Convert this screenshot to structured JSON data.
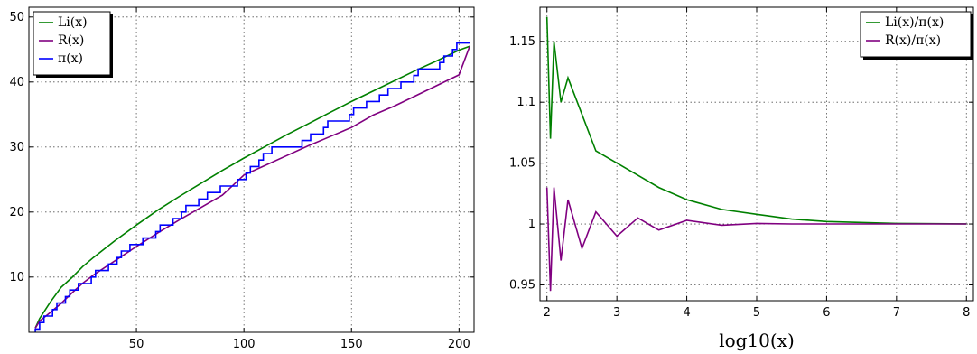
{
  "chart_data": [
    {
      "type": "line",
      "title": "",
      "xlabel": "",
      "ylabel": "",
      "xlim": [
        0,
        207
      ],
      "ylim": [
        1.5,
        51.5
      ],
      "xticks": [
        50,
        100,
        150,
        200
      ],
      "yticks": [
        10,
        20,
        30,
        40,
        50
      ],
      "grid": true,
      "legend_position": "top-left",
      "series": [
        {
          "name": "Li(x)",
          "color": "#008000",
          "x": [
            3,
            5,
            10,
            15,
            20,
            25,
            30,
            40,
            50,
            60,
            70,
            80,
            90,
            100,
            110,
            120,
            130,
            140,
            150,
            160,
            170,
            180,
            190,
            200,
            205
          ],
          "y": [
            2.16,
            3.63,
            6.17,
            8.42,
            9.91,
            11.6,
            13.0,
            15.6,
            18.0,
            20.3,
            22.4,
            24.4,
            26.4,
            28.3,
            30.1,
            31.9,
            33.6,
            35.3,
            37.0,
            38.6,
            40.2,
            41.8,
            43.3,
            44.9,
            45.5
          ]
        },
        {
          "name": "R(x)",
          "color": "#800080",
          "x": [
            3,
            5,
            10,
            15,
            20,
            25,
            30,
            40,
            50,
            60,
            70,
            80,
            90,
            100,
            110,
            120,
            130,
            140,
            150,
            160,
            170,
            180,
            190,
            200,
            205
          ],
          "y": [
            2.14,
            3.24,
            4.56,
            5.94,
            7.54,
            9.04,
            10.3,
            12.5,
            14.7,
            16.8,
            18.8,
            20.7,
            22.6,
            25.7,
            27.2,
            28.7,
            30.2,
            31.6,
            33.0,
            34.9,
            36.3,
            37.9,
            39.5,
            41.1,
            45.5
          ]
        },
        {
          "name": "π(x)",
          "color": "#0000ff",
          "x": [
            2,
            3,
            5,
            7,
            11,
            13,
            17,
            19,
            23,
            29,
            31,
            37,
            41,
            43,
            47,
            53,
            59,
            61,
            67,
            71,
            73,
            79,
            83,
            89,
            97,
            101,
            103,
            107,
            109,
            113,
            127,
            131,
            137,
            139,
            149,
            151,
            157,
            163,
            167,
            173,
            179,
            181,
            191,
            193,
            197,
            199,
            205
          ],
          "y": [
            1,
            2,
            3,
            4,
            5,
            6,
            7,
            8,
            9,
            10,
            11,
            12,
            13,
            14,
            15,
            16,
            17,
            18,
            19,
            20,
            21,
            22,
            23,
            24,
            25,
            26,
            27,
            28,
            29,
            30,
            31,
            32,
            33,
            34,
            35,
            36,
            37,
            38,
            39,
            40,
            41,
            42,
            43,
            44,
            45,
            46,
            46
          ]
        }
      ]
    },
    {
      "type": "line",
      "title": "",
      "xlabel": "log10(x)",
      "ylabel": "",
      "xlim": [
        1.9,
        8.1
      ],
      "ylim": [
        0.937,
        1.178
      ],
      "xticks": [
        2,
        3,
        4,
        5,
        6,
        7,
        8
      ],
      "yticks": [
        0.95,
        1,
        1.05,
        1.1,
        1.15
      ],
      "ytick_labels": [
        "0.95",
        "1",
        "1.05",
        "1.1",
        "1.15"
      ],
      "grid": true,
      "legend_position": "top-right",
      "series": [
        {
          "name": "Li(x)/π(x)",
          "color": "#008000",
          "x": [
            2.0,
            2.05,
            2.1,
            2.2,
            2.3,
            2.5,
            2.7,
            3.0,
            3.3,
            3.6,
            4.0,
            4.5,
            5.0,
            5.5,
            6.0,
            7.0,
            8.0
          ],
          "y": [
            1.17,
            1.07,
            1.15,
            1.1,
            1.12,
            1.09,
            1.06,
            1.05,
            1.04,
            1.03,
            1.02,
            1.012,
            1.008,
            1.004,
            1.002,
            1.0005,
            1.0001
          ]
        },
        {
          "name": "R(x)/π(x)",
          "color": "#800080",
          "x": [
            2.0,
            2.05,
            2.1,
            2.2,
            2.3,
            2.5,
            2.7,
            3.0,
            3.3,
            3.6,
            4.0,
            4.5,
            5.0,
            5.5,
            6.0,
            7.0,
            8.0
          ],
          "y": [
            1.03,
            0.945,
            1.03,
            0.97,
            1.02,
            0.98,
            1.01,
            0.99,
            1.005,
            0.995,
            1.003,
            0.999,
            1.0005,
            1.0,
            1.0,
            1.0,
            1.0
          ]
        }
      ]
    }
  ]
}
